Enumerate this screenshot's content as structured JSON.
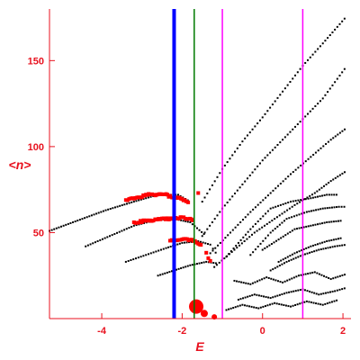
{
  "chart_data": {
    "type": "scatter",
    "title": "",
    "xlabel": "E",
    "ylabel": "<n>",
    "xlim": [
      -5.3,
      2.2
    ],
    "ylim": [
      0,
      180
    ],
    "xticks": [
      -4,
      -2,
      0,
      2
    ],
    "yticks": [
      50,
      100,
      150
    ],
    "grid": false,
    "legend": "none",
    "colors": {
      "axes": "#e8121f",
      "dots": "#000000",
      "highlight": "#ff0000",
      "blue_line": "#0000ff",
      "green_line": "#007a00",
      "magenta_line": "#ff00ff"
    },
    "vertical_lines": [
      {
        "x": -2.2,
        "color": "#0000ff",
        "width": 4
      },
      {
        "x": -1.7,
        "color": "#007a00",
        "width": 1.5
      },
      {
        "x": -1.0,
        "color": "#ff00ff",
        "width": 1.5
      },
      {
        "x": 1.0,
        "color": "#ff00ff",
        "width": 1.5
      }
    ],
    "series": [
      {
        "color": "#000000",
        "kind": "band",
        "x": [
          -5.3,
          -4.6,
          -3.9,
          -3.2,
          -2.6,
          -2.1,
          -1.8
        ],
        "y": [
          51,
          57,
          63,
          68,
          72,
          72,
          68
        ]
      },
      {
        "color": "#000000",
        "kind": "band",
        "x": [
          -4.4,
          -3.8,
          -3.2,
          -2.7,
          -2.2,
          -1.8,
          -1.4
        ],
        "y": [
          42,
          48,
          54,
          57,
          58,
          56,
          48
        ]
      },
      {
        "color": "#000000",
        "kind": "band",
        "x": [
          -3.4,
          -2.9,
          -2.4,
          -2.0,
          -1.6,
          -1.3,
          -1.1
        ],
        "y": [
          33,
          37,
          41,
          44,
          45,
          43,
          36
        ]
      },
      {
        "color": "#000000",
        "kind": "band",
        "x": [
          -2.6,
          -2.2,
          -1.8,
          -1.4,
          -1.1
        ],
        "y": [
          25,
          28,
          31,
          33,
          32
        ]
      },
      {
        "color": "#000000",
        "kind": "band",
        "x": [
          -1.5,
          -1.0,
          -0.5,
          0.0,
          0.5,
          1.0,
          1.5,
          2.1
        ],
        "y": [
          68,
          87,
          103,
          117,
          132,
          147,
          160,
          176
        ]
      },
      {
        "color": "#000000",
        "kind": "band",
        "x": [
          -1.5,
          -1.0,
          -0.5,
          0.0,
          0.5,
          1.0,
          1.5,
          2.1
        ],
        "y": [
          48,
          64,
          78,
          92,
          104,
          116,
          128,
          147
        ]
      },
      {
        "color": "#000000",
        "kind": "band",
        "x": [
          -1.3,
          -0.8,
          -0.3,
          0.2,
          0.7,
          1.2,
          1.7,
          2.1
        ],
        "y": [
          38,
          50,
          62,
          73,
          84,
          94,
          104,
          111
        ]
      },
      {
        "color": "#000000",
        "kind": "band",
        "x": [
          -1.2,
          -0.7,
          -0.2,
          0.3,
          0.8,
          1.3,
          1.7,
          2.1
        ],
        "y": [
          30,
          40,
          50,
          58,
          66,
          73,
          80,
          86
        ]
      },
      {
        "color": "#000000",
        "kind": "band",
        "x": [
          -0.9,
          -0.3,
          0.2,
          0.7,
          1.2,
          1.6,
          1.9
        ],
        "y": [
          36,
          52,
          64,
          68,
          70,
          72,
          72
        ]
      },
      {
        "color": "#000000",
        "kind": "band",
        "x": [
          -0.3,
          0.2,
          0.6,
          1.1,
          1.5,
          1.9,
          2.1
        ],
        "y": [
          37,
          50,
          58,
          62,
          64,
          65,
          65
        ]
      },
      {
        "color": "#000000",
        "kind": "band",
        "x": [
          0.0,
          0.4,
          0.8,
          1.2,
          1.6,
          2.0
        ],
        "y": [
          40,
          46,
          52,
          54,
          56,
          57
        ]
      },
      {
        "color": "#000000",
        "kind": "band",
        "x": [
          0.4,
          0.8,
          1.2,
          1.6,
          2.0
        ],
        "y": [
          33,
          38,
          42,
          45,
          47
        ]
      },
      {
        "color": "#000000",
        "kind": "band",
        "x": [
          0.2,
          0.6,
          1.0,
          1.4,
          1.8,
          2.1
        ],
        "y": [
          28,
          33,
          37,
          40,
          42,
          43
        ]
      },
      {
        "color": "#000000",
        "kind": "band",
        "x": [
          -0.6,
          -0.2,
          0.2,
          0.6,
          1.0,
          1.4,
          1.8,
          2.1
        ],
        "y": [
          11,
          14,
          12,
          15,
          17,
          14,
          16,
          18
        ]
      },
      {
        "color": "#000000",
        "kind": "band",
        "x": [
          -0.7,
          -0.3,
          0.1,
          0.5,
          0.9,
          1.3,
          1.7,
          2.1
        ],
        "y": [
          22,
          20,
          24,
          21,
          25,
          27,
          23,
          26
        ]
      },
      {
        "color": "#000000",
        "kind": "band",
        "x": [
          -0.9,
          -0.5,
          -0.1,
          0.3,
          0.7,
          1.1,
          1.5,
          1.9
        ],
        "y": [
          5,
          8,
          6,
          9,
          7,
          10,
          8,
          11
        ]
      },
      {
        "color": "#ff0000",
        "kind": "highlight",
        "x": [
          -3.4,
          -3.2,
          -3.0,
          -2.9,
          -2.8,
          -2.7,
          -2.6,
          -2.5,
          -2.4,
          -2.3,
          -2.2,
          -2.1,
          -2.0,
          -1.9,
          -1.8
        ],
        "y": [
          69,
          70,
          71,
          72,
          72,
          72,
          72,
          72,
          72,
          71,
          70,
          70,
          69,
          68,
          66
        ]
      },
      {
        "color": "#ff0000",
        "kind": "highlight",
        "x": [
          -3.2,
          -2.8,
          -2.5,
          -2.2,
          -2.0,
          -1.8,
          -1.7
        ],
        "y": [
          56,
          57,
          58,
          58,
          59,
          58,
          57
        ]
      },
      {
        "color": "#ff0000",
        "kind": "highlight",
        "x": [
          -2.3,
          -2.0,
          -1.8,
          -1.6,
          -1.5
        ],
        "y": [
          45,
          46,
          46,
          44,
          42
        ]
      },
      {
        "color": "#ff0000",
        "kind": "highlight",
        "x": [
          -1.4,
          -1.3,
          -1.3
        ],
        "y": [
          38,
          33,
          30
        ]
      },
      {
        "color": "#ff0000",
        "kind": "highlight",
        "x": [
          -1.6
        ],
        "y": [
          73
        ]
      }
    ],
    "large_points": [
      {
        "x": -1.65,
        "y": 7,
        "size": 8,
        "color": "#ff0000"
      },
      {
        "x": -1.45,
        "y": 3,
        "size": 4,
        "color": "#ff0000"
      },
      {
        "x": -1.2,
        "y": 1,
        "size": 3,
        "color": "#ff0000"
      }
    ]
  }
}
